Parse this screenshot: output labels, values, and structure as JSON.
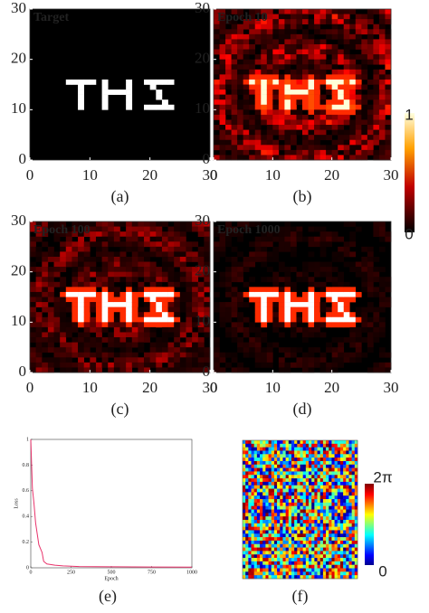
{
  "chart_data": [
    {
      "type": "heatmap",
      "title": "Target",
      "panel_label": "(a)",
      "xlim": [
        0,
        30
      ],
      "ylim": [
        0,
        30
      ],
      "xticks": [
        0,
        10,
        20,
        30
      ],
      "yticks": [
        0,
        10,
        20,
        30
      ]
    },
    {
      "type": "heatmap",
      "title": "Epoch 10",
      "panel_label": "(b)",
      "xlim": [
        0,
        30
      ],
      "ylim": [
        0,
        30
      ],
      "xticks": [
        0,
        10,
        20,
        30
      ],
      "yticks": [
        0,
        10,
        20,
        30
      ]
    },
    {
      "type": "heatmap",
      "title": "Epoch 100",
      "panel_label": "(c)",
      "xlim": [
        0,
        30
      ],
      "ylim": [
        0,
        30
      ],
      "xticks": [
        0,
        10,
        20,
        30
      ],
      "yticks": [
        0,
        10,
        20,
        30
      ]
    },
    {
      "type": "heatmap",
      "title": "Epoch 1000",
      "panel_label": "(d)",
      "xlim": [
        0,
        30
      ],
      "ylim": [
        0,
        30
      ],
      "xticks": [
        0,
        10,
        20,
        30
      ],
      "yticks": [
        0,
        10,
        20,
        30
      ]
    },
    {
      "type": "colorbar",
      "ylim": [
        0,
        1
      ],
      "yticks": [
        0,
        1
      ]
    },
    {
      "type": "line",
      "panel_label": "(e)",
      "xlabel": "Epoch",
      "ylabel": "Loss",
      "x": [
        0,
        10,
        20,
        30,
        50,
        70,
        80,
        100,
        150,
        200,
        300,
        500,
        750,
        1000
      ],
      "series": [
        {
          "color": "#e8336b",
          "values": [
            1,
            0.62,
            0.5,
            0.35,
            0.18,
            0.12,
            0.05,
            0.03,
            0.02,
            0.015,
            0.01,
            0.008,
            0.006,
            0.005
          ]
        }
      ],
      "xlim": [
        0,
        1000
      ],
      "ylim": [
        0,
        1
      ],
      "xticks": [
        0,
        250,
        500,
        750,
        1000
      ],
      "yticks": [
        0,
        0.2,
        0.4,
        0.6,
        0.8,
        1
      ]
    },
    {
      "type": "phase-map",
      "panel_label": "(f)",
      "ylim": [
        0,
        6.283
      ],
      "yticks": [
        {
          "value": 0,
          "label": "0"
        },
        {
          "value": 6.283,
          "label": "2π"
        }
      ]
    }
  ]
}
